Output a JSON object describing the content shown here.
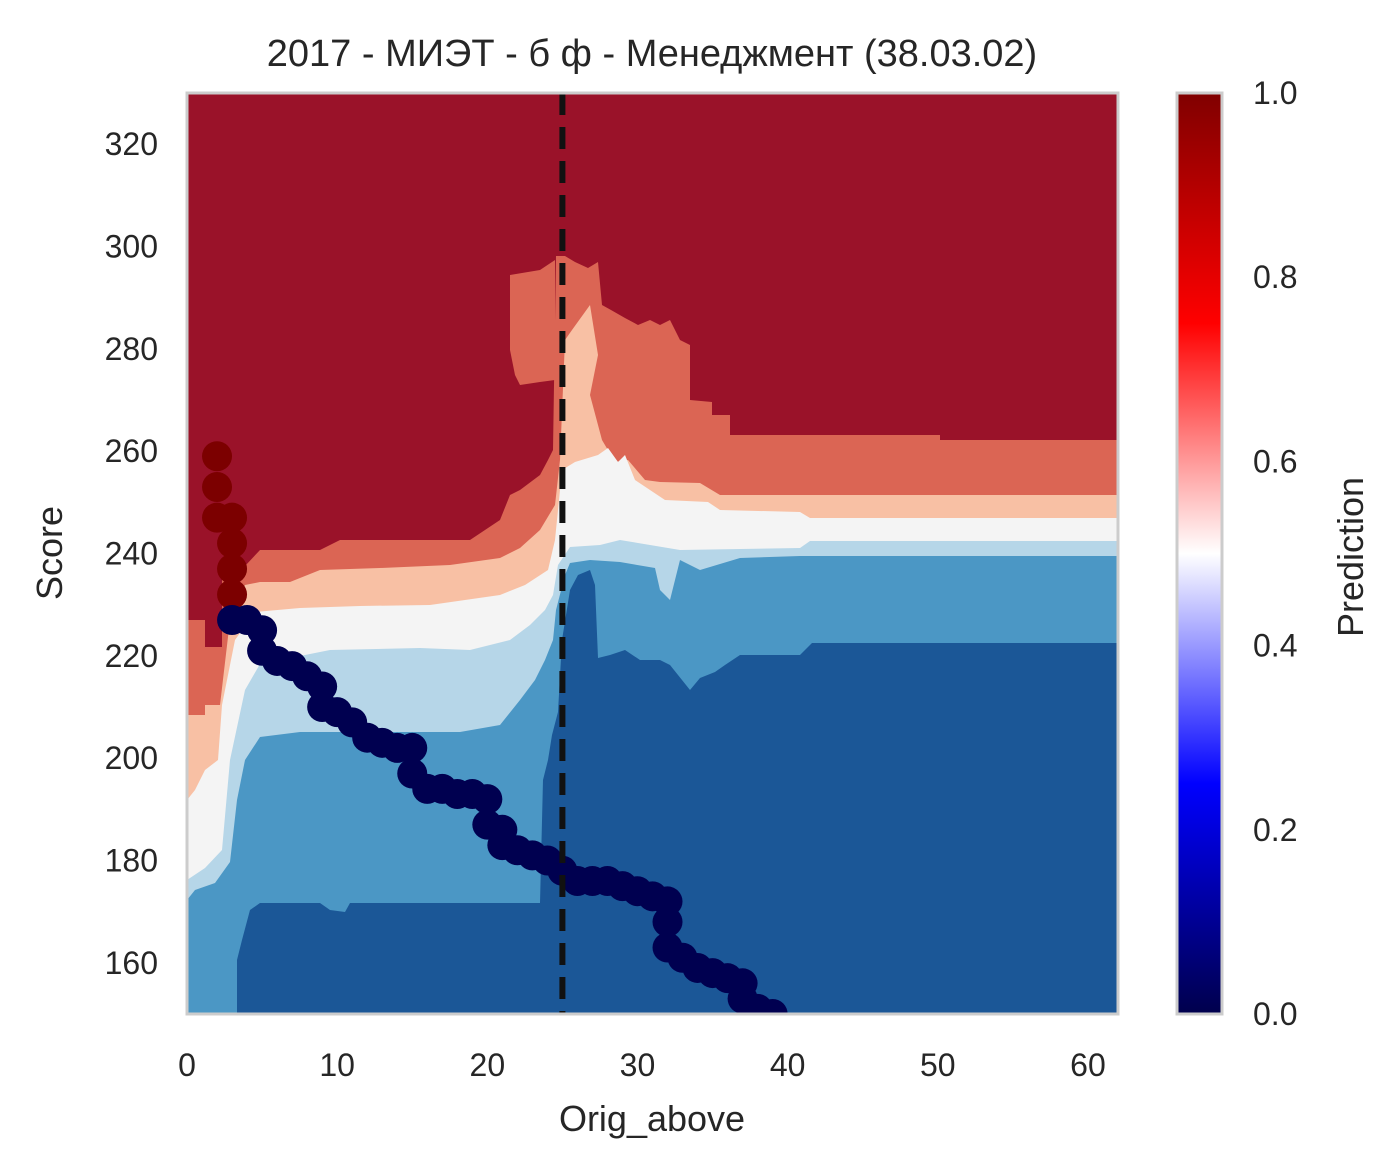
{
  "chart_data": {
    "type": "heatmap",
    "title": "2017 - МИЭТ - б ф - Менеджмент (38.03.02)",
    "xlabel": "Orig_above",
    "ylabel": "Score",
    "xlim": [
      0,
      62
    ],
    "ylim": [
      150,
      330
    ],
    "xticks": [
      0,
      10,
      20,
      30,
      40,
      50,
      60
    ],
    "yticks": [
      160,
      180,
      200,
      220,
      240,
      260,
      280,
      300,
      320
    ],
    "grid": false,
    "vline": {
      "x": 25,
      "style": "dashed",
      "color": "#111111"
    },
    "colorbar": {
      "label": "Prediction",
      "range": [
        0,
        1
      ],
      "ticks": [
        "0.0",
        "0.2",
        "0.4",
        "0.6",
        "0.8",
        "1.0"
      ],
      "colormap": "seismic"
    },
    "contour_levels": [
      {
        "level": "0.0–0.2",
        "color": "#1b5797"
      },
      {
        "level": "0.2–0.35",
        "color": "#4b97c5"
      },
      {
        "level": "0.35–0.45",
        "color": "#b6d6e8"
      },
      {
        "level": "0.45–0.55",
        "color": "#f4f4f4"
      },
      {
        "level": "0.55–0.65",
        "color": "#f8c0a4"
      },
      {
        "level": "0.65–0.8",
        "color": "#db6554"
      },
      {
        "level": "0.8–1.0",
        "color": "#9a1229"
      }
    ],
    "scatter_series": [
      {
        "color": "#7c0000",
        "points": [
          [
            2,
            259
          ],
          [
            2,
            253
          ],
          [
            2,
            247
          ],
          [
            3,
            247
          ],
          [
            3,
            242
          ],
          [
            3,
            237
          ],
          [
            3,
            232
          ]
        ]
      },
      {
        "color": "#000050",
        "points": [
          [
            3,
            227
          ],
          [
            4,
            227
          ],
          [
            5,
            225
          ],
          [
            5,
            221
          ],
          [
            6,
            219
          ],
          [
            7,
            218
          ],
          [
            8,
            216
          ],
          [
            9,
            214
          ],
          [
            9,
            210
          ],
          [
            10,
            209
          ],
          [
            11,
            207
          ],
          [
            12,
            204
          ],
          [
            13,
            203
          ],
          [
            14,
            202
          ],
          [
            15,
            202
          ],
          [
            15,
            197
          ],
          [
            16,
            194
          ],
          [
            17,
            194
          ],
          [
            18,
            193
          ],
          [
            19,
            193
          ],
          [
            20,
            192
          ],
          [
            20,
            187
          ],
          [
            21,
            186
          ],
          [
            21,
            183
          ],
          [
            22,
            182
          ],
          [
            23,
            181
          ],
          [
            24,
            180
          ],
          [
            25,
            178
          ],
          [
            26,
            176
          ],
          [
            27,
            176
          ],
          [
            28,
            176
          ],
          [
            29,
            175
          ],
          [
            30,
            174
          ],
          [
            31,
            173
          ],
          [
            32,
            172
          ],
          [
            32,
            168
          ],
          [
            32,
            163
          ],
          [
            33,
            161
          ],
          [
            34,
            159
          ],
          [
            35,
            158
          ],
          [
            36,
            157
          ],
          [
            37,
            156
          ],
          [
            37,
            153
          ],
          [
            38,
            151
          ],
          [
            39,
            150
          ]
        ]
      }
    ]
  }
}
